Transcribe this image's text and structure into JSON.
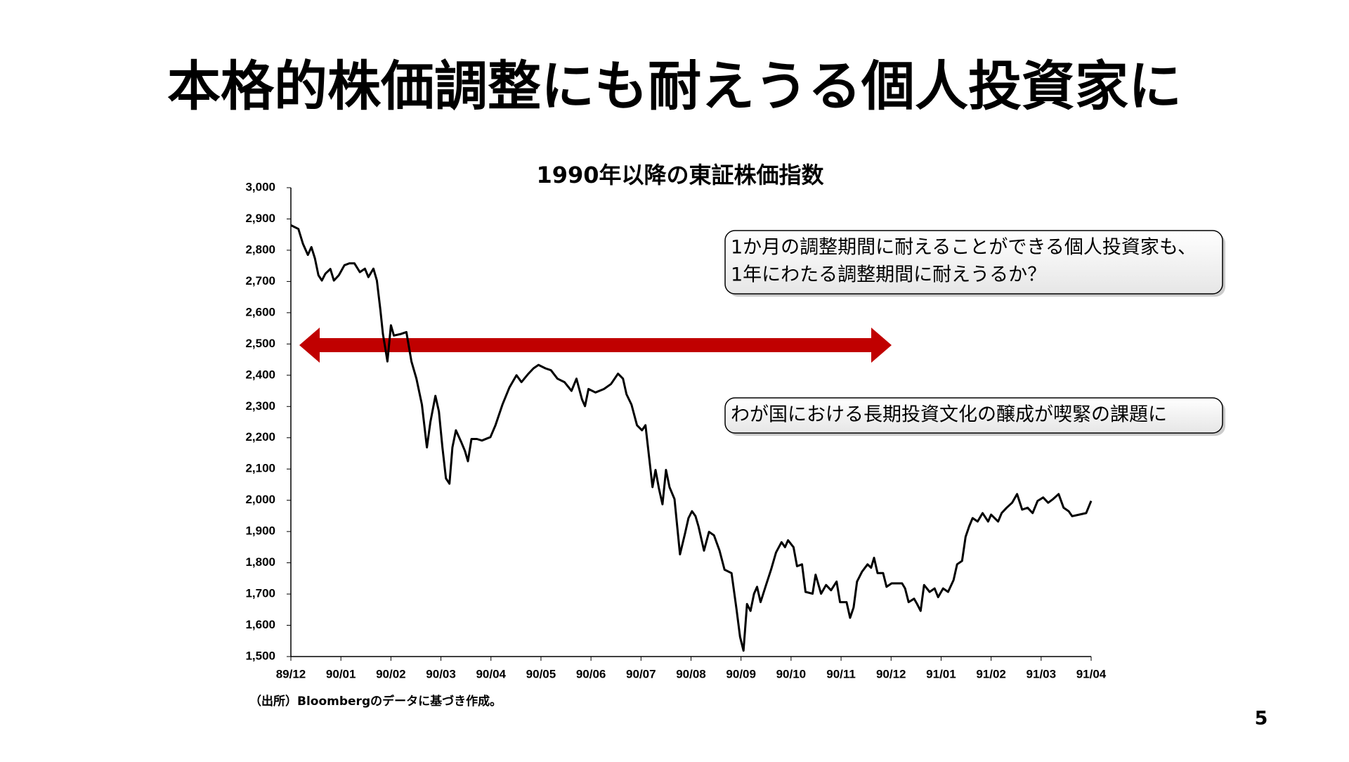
{
  "title": "本格的株価調整にも耐えうる個人投資家に",
  "chart_data": {
    "type": "line",
    "title": "1990年以降の東証株価指数",
    "color": "#000000",
    "x": [
      0,
      0.15,
      0.24,
      0.34,
      0.41,
      0.48,
      0.55,
      0.62,
      0.69,
      0.79,
      0.86,
      0.96,
      1.07,
      1.17,
      1.27,
      1.38,
      1.48,
      1.55,
      1.65,
      1.72,
      1.79,
      1.84,
      1.89,
      1.93,
      2.0,
      2.06,
      2.2,
      2.31,
      2.41,
      2.51,
      2.62,
      2.72,
      2.79,
      2.89,
      2.96,
      3.03,
      3.1,
      3.17,
      3.23,
      3.3,
      3.41,
      3.48,
      3.54,
      3.61,
      3.72,
      3.82,
      3.99,
      4.09,
      4.23,
      4.37,
      4.51,
      4.61,
      4.75,
      4.85,
      4.95,
      5.09,
      5.2,
      5.33,
      5.47,
      5.61,
      5.71,
      5.82,
      5.88,
      5.95,
      6.09,
      6.26,
      6.4,
      6.54,
      6.64,
      6.71,
      6.81,
      6.92,
      7.02,
      7.09,
      7.16,
      7.23,
      7.29,
      7.36,
      7.43,
      7.5,
      7.57,
      7.67,
      7.78,
      7.88,
      7.95,
      8.02,
      8.09,
      8.15,
      8.26,
      8.36,
      8.46,
      8.57,
      8.67,
      8.81,
      8.91,
      8.98,
      9.05,
      9.12,
      9.19,
      9.26,
      9.32,
      9.39,
      9.5,
      9.6,
      9.7,
      9.81,
      9.88,
      9.94,
      10.05,
      10.12,
      10.22,
      10.29,
      10.43,
      10.49,
      10.6,
      10.7,
      10.8,
      10.91,
      10.98,
      11.11,
      11.18,
      11.25,
      11.32,
      11.42,
      11.53,
      11.6,
      11.66,
      11.73,
      11.84,
      11.91,
      12.01,
      12.22,
      12.28,
      12.35,
      12.46,
      12.52,
      12.59,
      12.66,
      12.77,
      12.87,
      12.94,
      13.04,
      13.14,
      13.25,
      13.32,
      13.42,
      13.49,
      13.56,
      13.63,
      13.73,
      13.83,
      13.94,
      14.0,
      14.14,
      14.21,
      14.31,
      14.42,
      14.52,
      14.62,
      14.73,
      14.83,
      14.93,
      15.04,
      15.14,
      15.24,
      15.35,
      15.45,
      15.55,
      15.62,
      15.76,
      15.9,
      16.0
    ],
    "values": [
      2880,
      2868,
      2821,
      2785,
      2810,
      2774,
      2720,
      2703,
      2725,
      2740,
      2703,
      2720,
      2752,
      2758,
      2758,
      2730,
      2741,
      2714,
      2741,
      2703,
      2609,
      2532,
      2485,
      2444,
      2560,
      2527,
      2532,
      2538,
      2444,
      2389,
      2306,
      2169,
      2251,
      2334,
      2284,
      2169,
      2070,
      2053,
      2169,
      2224,
      2185,
      2158,
      2125,
      2196,
      2196,
      2191,
      2202,
      2240,
      2306,
      2361,
      2400,
      2378,
      2405,
      2422,
      2433,
      2422,
      2416,
      2389,
      2378,
      2350,
      2389,
      2323,
      2301,
      2356,
      2345,
      2356,
      2372,
      2405,
      2389,
      2339,
      2306,
      2240,
      2224,
      2240,
      2141,
      2042,
      2097,
      2037,
      1987,
      2097,
      2042,
      2004,
      1827,
      1894,
      1943,
      1965,
      1949,
      1916,
      1839,
      1899,
      1888,
      1839,
      1778,
      1767,
      1651,
      1563,
      1519,
      1668,
      1646,
      1701,
      1723,
      1674,
      1729,
      1778,
      1833,
      1866,
      1850,
      1872,
      1850,
      1789,
      1795,
      1707,
      1701,
      1762,
      1701,
      1729,
      1712,
      1740,
      1674,
      1674,
      1624,
      1657,
      1740,
      1772,
      1795,
      1784,
      1816,
      1767,
      1767,
      1723,
      1734,
      1734,
      1718,
      1674,
      1685,
      1668,
      1646,
      1729,
      1707,
      1718,
      1690,
      1718,
      1707,
      1745,
      1795,
      1806,
      1883,
      1916,
      1943,
      1932,
      1959,
      1932,
      1954,
      1932,
      1959,
      1976,
      1992,
      2020,
      1970,
      1976,
      1959,
      1998,
      2009,
      1992,
      2004,
      2020,
      1976,
      1965,
      1949,
      1954,
      1959,
      1998
    ],
    "xlim": [
      0,
      16
    ],
    "xticks": [
      {
        "value": 0,
        "label": "89/12"
      },
      {
        "value": 1,
        "label": "90/01"
      },
      {
        "value": 2,
        "label": "90/02"
      },
      {
        "value": 3,
        "label": "90/03"
      },
      {
        "value": 4,
        "label": "90/04"
      },
      {
        "value": 5,
        "label": "90/05"
      },
      {
        "value": 6,
        "label": "90/06"
      },
      {
        "value": 7,
        "label": "90/07"
      },
      {
        "value": 8,
        "label": "90/08"
      },
      {
        "value": 9,
        "label": "90/09"
      },
      {
        "value": 10,
        "label": "90/10"
      },
      {
        "value": 11,
        "label": "90/11"
      },
      {
        "value": 12,
        "label": "90/12"
      },
      {
        "value": 13,
        "label": "91/01"
      },
      {
        "value": 14,
        "label": "91/02"
      },
      {
        "value": 15,
        "label": "91/03"
      },
      {
        "value": 16,
        "label": "91/04"
      }
    ],
    "ylim": [
      1500,
      3000
    ],
    "yticks": [
      {
        "value": 1500,
        "label": "1,500"
      },
      {
        "value": 1600,
        "label": "1,600"
      },
      {
        "value": 1700,
        "label": "1,700"
      },
      {
        "value": 1800,
        "label": "1,800"
      },
      {
        "value": 1900,
        "label": "1,900"
      },
      {
        "value": 2000,
        "label": "2,000"
      },
      {
        "value": 2100,
        "label": "2,100"
      },
      {
        "value": 2200,
        "label": "2,200"
      },
      {
        "value": 2300,
        "label": "2,300"
      },
      {
        "value": 2400,
        "label": "2,400"
      },
      {
        "value": 2500,
        "label": "2,500"
      },
      {
        "value": 2600,
        "label": "2,600"
      },
      {
        "value": 2700,
        "label": "2,700"
      },
      {
        "value": 2800,
        "label": "2,800"
      },
      {
        "value": 2900,
        "label": "2,900"
      },
      {
        "value": 3000,
        "label": "3,000"
      }
    ],
    "grid": false,
    "annotations": [
      [
        "1か月の調整期間に耐えることができる個人投資家も、",
        "1年にわたる調整期間に耐えうるか？"
      ],
      [
        "わが国における長期投資文化の醸成が喫緊の課題に"
      ]
    ]
  },
  "source": "（出所）Bloombergのデータに基づき作成。",
  "page_number": "5"
}
